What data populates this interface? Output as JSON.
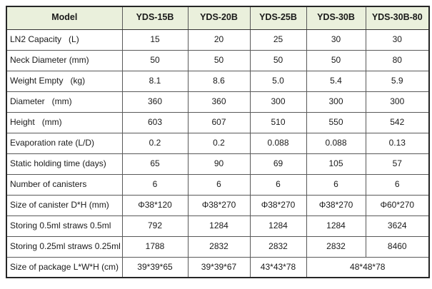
{
  "colors": {
    "header_bg": "#eaf0dc",
    "inner_border": "#595959",
    "outer_border": "#262626",
    "text": "#1a1a1a",
    "page_bg": "#ffffff"
  },
  "table": {
    "header": [
      "Model",
      "YDS-15B",
      "YDS-20B",
      "YDS-25B",
      "YDS-30B",
      "YDS-30B-80"
    ],
    "rows": [
      {
        "label": "LN2 Capacity   (L)",
        "values": [
          "15",
          "20",
          "25",
          "30",
          "30"
        ]
      },
      {
        "label": "Neck Diameter (mm)",
        "values": [
          "50",
          "50",
          "50",
          "50",
          "80"
        ]
      },
      {
        "label": "Weight Empty   (kg)",
        "values": [
          "8.1",
          "8.6",
          "5.0",
          "5.4",
          "5.9"
        ]
      },
      {
        "label": "Diameter   (mm)",
        "values": [
          "360",
          "360",
          "300",
          "300",
          "300"
        ]
      },
      {
        "label": "Height   (mm)",
        "values": [
          "603",
          "607",
          "510",
          "550",
          "542"
        ]
      },
      {
        "label": "Evaporation rate (L/D)",
        "values": [
          "0.2",
          "0.2",
          "0.088",
          "0.088",
          "0.13"
        ]
      },
      {
        "label": "Static holding time (days)",
        "values": [
          "65",
          "90",
          "69",
          "105",
          "57"
        ]
      },
      {
        "label": "Number of canisters",
        "values": [
          "6",
          "6",
          "6",
          "6",
          "6"
        ]
      },
      {
        "label": "Size of canister D*H (mm)",
        "values": [
          "Φ38*120",
          "Φ38*270",
          "Φ38*270",
          "Φ38*270",
          "Φ60*270"
        ]
      },
      {
        "label": "Storing 0.5ml straws 0.5ml",
        "values": [
          "792",
          "1284",
          "1284",
          "1284",
          "3624"
        ]
      },
      {
        "label": "Storing 0.25ml straws 0.25ml",
        "values": [
          "1788",
          "2832",
          "2832",
          "2832",
          "8460"
        ]
      },
      {
        "label": "Size of package L*W*H (cm)",
        "values": [
          "39*39*65",
          "39*39*67",
          "43*43*78",
          "48*48*78"
        ],
        "last_cell_colspan": 2
      }
    ]
  }
}
